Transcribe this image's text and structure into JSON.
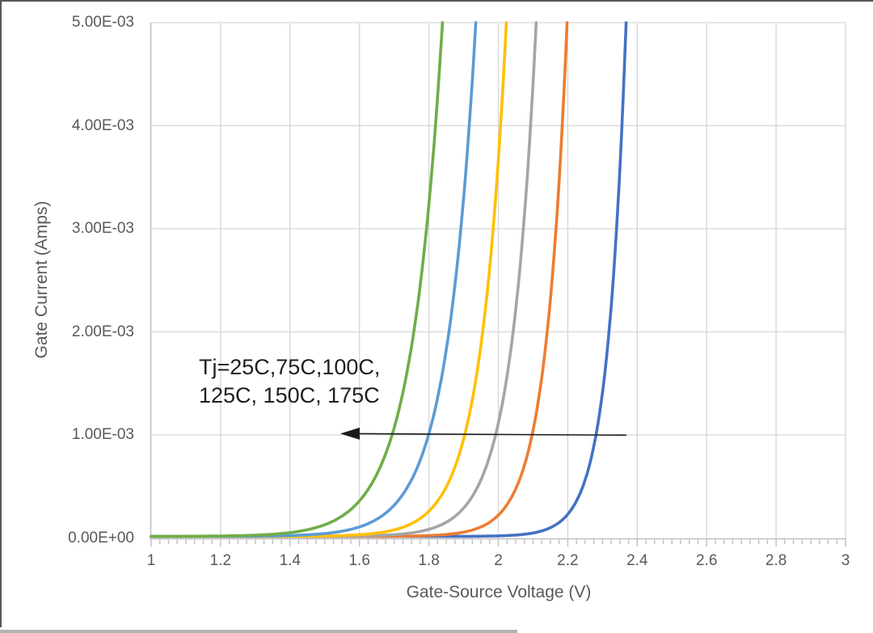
{
  "chart": {
    "y_axis_title": "Gate Current (Amps)",
    "x_axis_title": "Gate-Source Voltage (V)",
    "y_tick_labels": [
      "0.00E+00",
      "1.00E-03",
      "2.00E-03",
      "3.00E-03",
      "4.00E-03",
      "5.00E-03"
    ],
    "x_tick_labels": [
      "1",
      "1.2",
      "1.4",
      "1.6",
      "1.8",
      "2",
      "2.2",
      "2.4",
      "2.6",
      "2.8",
      "3"
    ],
    "annotation": {
      "line1": "Tj=25C,75C,100C,",
      "line2": "125C, 150C, 175C"
    },
    "colors": {
      "gridline": "#d6d6d6",
      "axis_line": "#bfbfbf",
      "tick_mark": "#bfbfbf",
      "text": "#595959",
      "annotation_text": "#1f1f1f",
      "arrow": "#1a1a1a"
    }
  },
  "chart_data": {
    "type": "line",
    "title": "",
    "xlabel": "Gate-Source Voltage (V)",
    "ylabel": "Gate Current (Amps)",
    "xlim": [
      1,
      3
    ],
    "ylim": [
      0,
      0.005
    ],
    "x_major_step": 0.2,
    "x_minor_step": 0.025,
    "y_major_step": 0.001,
    "grid": true,
    "legend_position": "none",
    "annotation_meaning": "Arrow points left: curves shift to lower gate-source voltage as junction temperature Tj increases from 25C to 175C",
    "current_levels_mA": [
      0.5,
      1,
      2,
      3,
      4,
      5
    ],
    "series": [
      {
        "name": "Tj=25C",
        "color": "#4472C4",
        "v_at_levels": [
          2.245,
          2.282,
          2.319,
          2.341,
          2.356,
          2.368
        ]
      },
      {
        "name": "Tj=75C",
        "color": "#ED7D31",
        "v_at_levels": [
          2.055,
          2.098,
          2.141,
          2.166,
          2.184,
          2.198
        ]
      },
      {
        "name": "Tj=100C",
        "color": "#A5A5A5",
        "v_at_levels": [
          1.943,
          1.993,
          2.043,
          2.072,
          2.093,
          2.109
        ]
      },
      {
        "name": "Tj=125C",
        "color": "#FFC000",
        "v_at_levels": [
          1.853,
          1.904,
          1.955,
          1.985,
          2.006,
          2.023
        ]
      },
      {
        "name": "Tj=150C",
        "color": "#5B9BD5",
        "v_at_levels": [
          1.742,
          1.8,
          1.858,
          1.892,
          1.916,
          1.935
        ]
      },
      {
        "name": "Tj=175C",
        "color": "#70AD47",
        "v_at_levels": [
          1.633,
          1.695,
          1.757,
          1.793,
          1.819,
          1.839
        ]
      }
    ],
    "arrow": {
      "from": [
        2.369,
        0.000985
      ],
      "to": [
        1.554,
        0.001
      ],
      "direction": "left"
    }
  }
}
